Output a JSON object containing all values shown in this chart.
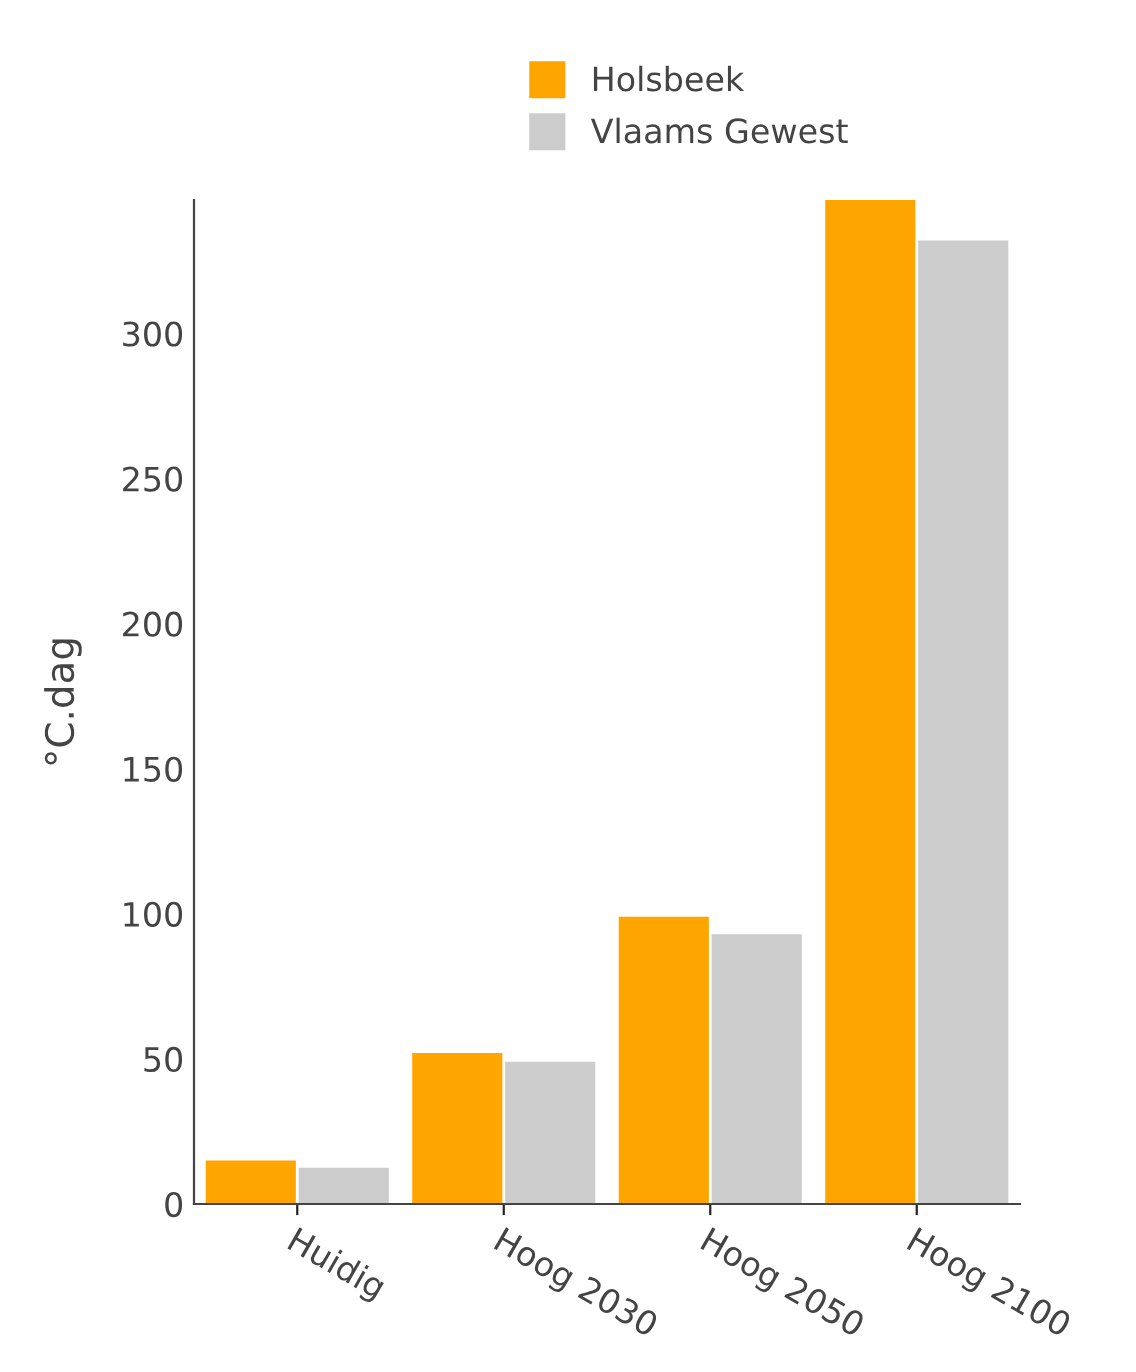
{
  "chart_data": {
    "type": "bar",
    "ylabel": "°C.dag",
    "categories": [
      "Huidig",
      "Hoog 2030",
      "Hoog 2050",
      "Hoog 2100"
    ],
    "series": [
      {
        "name": "Holsbeek",
        "color": "#ffa500",
        "values": [
          15,
          52,
          99,
          346
        ]
      },
      {
        "name": "Vlaams Gewest",
        "color": "#cccccc",
        "values": [
          12.5,
          49,
          93,
          332
        ]
      }
    ],
    "ylim": [
      0,
      346
    ],
    "yticks": [
      0,
      50,
      100,
      150,
      200,
      250,
      300
    ],
    "grid": false,
    "legend": "top"
  }
}
